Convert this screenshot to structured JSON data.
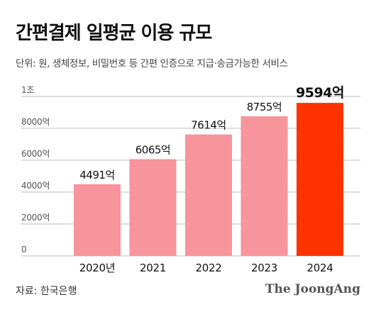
{
  "header": {
    "title": "간편결제 일평균 이용 규모",
    "subtitle": "단위: 원, 생체정보, 비밀번호 등 간편 인증으로 지급·송금가능한 서비스"
  },
  "footer": {
    "source": "자료: 한국은행",
    "brand": "The JoongAng"
  },
  "colors": {
    "bar": "#f7949c",
    "highlight": "#ff3300",
    "grid": "#bdbdbd",
    "text": "#111111"
  },
  "chart_data": {
    "type": "bar",
    "categories": [
      "2020년",
      "2021",
      "2022",
      "2023",
      "2024"
    ],
    "values": [
      4491,
      6065,
      7614,
      8755,
      9594
    ],
    "value_labels": [
      "4491억",
      "6065억",
      "7614억",
      "8755억",
      "9594억"
    ],
    "highlight_index": 4,
    "ylim": [
      0,
      10000
    ],
    "yticks": [
      0,
      2000,
      4000,
      6000,
      8000,
      10000
    ],
    "ytick_labels": [
      "0",
      "2000억",
      "4000억",
      "6000억",
      "8000억",
      "1조"
    ],
    "grid": true
  }
}
